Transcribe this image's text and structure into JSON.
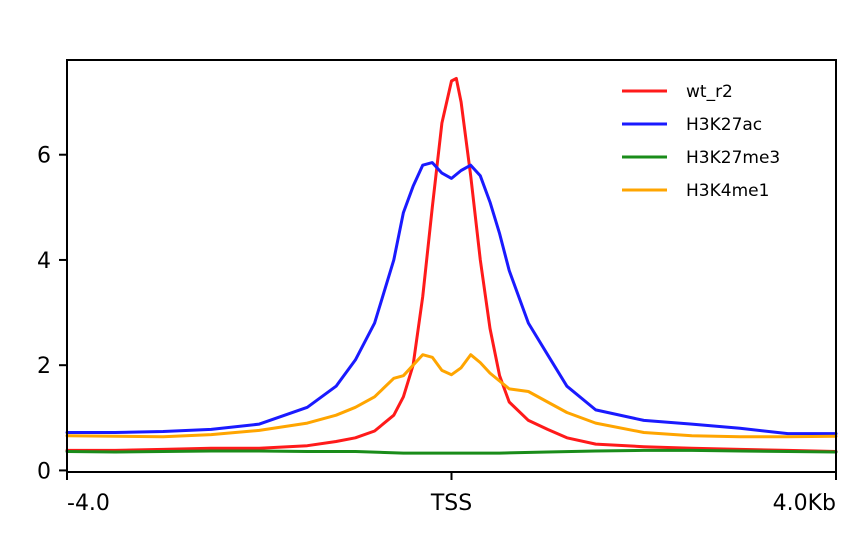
{
  "chart_data": {
    "type": "line",
    "title": "",
    "xlabel": "",
    "ylabel": "",
    "xlim": [
      -4.0,
      4.0
    ],
    "ylim": [
      -0.03,
      7.8
    ],
    "grid": false,
    "legend_position": "top-right",
    "x_ticks": [
      {
        "value": -4.0,
        "label": "-4.0"
      },
      {
        "value": 0.0,
        "label": "TSS"
      },
      {
        "value": 4.0,
        "label": "4.0Kb"
      }
    ],
    "y_ticks": [
      {
        "value": 0,
        "label": "0"
      },
      {
        "value": 2,
        "label": "2"
      },
      {
        "value": 4,
        "label": "4"
      },
      {
        "value": 6,
        "label": "6"
      }
    ],
    "series": [
      {
        "name": "wt_r2",
        "color": "#ff1a1a",
        "x": [
          -4.0,
          -3.5,
          -3.0,
          -2.5,
          -2.0,
          -1.5,
          -1.2,
          -1.0,
          -0.8,
          -0.6,
          -0.5,
          -0.4,
          -0.3,
          -0.2,
          -0.1,
          0.0,
          0.05,
          0.1,
          0.2,
          0.3,
          0.4,
          0.5,
          0.6,
          0.8,
          1.0,
          1.2,
          1.5,
          2.0,
          2.5,
          3.0,
          3.5,
          4.0
        ],
        "y": [
          0.38,
          0.38,
          0.4,
          0.42,
          0.42,
          0.47,
          0.55,
          0.62,
          0.75,
          1.05,
          1.4,
          2.0,
          3.3,
          5.0,
          6.6,
          7.4,
          7.45,
          7.0,
          5.6,
          4.0,
          2.7,
          1.8,
          1.3,
          0.95,
          0.78,
          0.62,
          0.5,
          0.45,
          0.42,
          0.4,
          0.38,
          0.36
        ]
      },
      {
        "name": "H3K27ac",
        "color": "#1a1aff",
        "x": [
          -4.0,
          -3.5,
          -3.0,
          -2.5,
          -2.0,
          -1.5,
          -1.2,
          -1.0,
          -0.8,
          -0.6,
          -0.5,
          -0.4,
          -0.3,
          -0.2,
          -0.1,
          0.0,
          0.1,
          0.2,
          0.3,
          0.4,
          0.5,
          0.6,
          0.8,
          1.0,
          1.2,
          1.5,
          2.0,
          2.5,
          3.0,
          3.5,
          4.0
        ],
        "y": [
          0.72,
          0.72,
          0.74,
          0.78,
          0.88,
          1.2,
          1.6,
          2.1,
          2.8,
          4.0,
          4.9,
          5.4,
          5.8,
          5.85,
          5.65,
          5.55,
          5.7,
          5.8,
          5.6,
          5.1,
          4.5,
          3.8,
          2.8,
          2.2,
          1.6,
          1.15,
          0.95,
          0.88,
          0.8,
          0.7,
          0.7
        ]
      },
      {
        "name": "H3K27me3",
        "color": "#1a8c1a",
        "x": [
          -4.0,
          -3.5,
          -3.0,
          -2.5,
          -2.0,
          -1.5,
          -1.0,
          -0.5,
          0.0,
          0.5,
          1.0,
          1.5,
          2.0,
          2.5,
          3.0,
          3.5,
          4.0
        ],
        "y": [
          0.36,
          0.35,
          0.36,
          0.37,
          0.37,
          0.36,
          0.36,
          0.33,
          0.33,
          0.33,
          0.35,
          0.37,
          0.38,
          0.38,
          0.37,
          0.36,
          0.35
        ]
      },
      {
        "name": "H3K4me1",
        "color": "#ffa500",
        "x": [
          -4.0,
          -3.5,
          -3.0,
          -2.5,
          -2.0,
          -1.5,
          -1.2,
          -1.0,
          -0.8,
          -0.6,
          -0.5,
          -0.4,
          -0.3,
          -0.2,
          -0.1,
          0.0,
          0.1,
          0.2,
          0.3,
          0.4,
          0.5,
          0.6,
          0.8,
          1.0,
          1.2,
          1.5,
          2.0,
          2.5,
          3.0,
          3.5,
          4.0
        ],
        "y": [
          0.66,
          0.65,
          0.64,
          0.68,
          0.76,
          0.9,
          1.05,
          1.2,
          1.4,
          1.75,
          1.8,
          2.0,
          2.2,
          2.15,
          1.9,
          1.82,
          1.95,
          2.2,
          2.05,
          1.85,
          1.7,
          1.55,
          1.5,
          1.3,
          1.1,
          0.9,
          0.72,
          0.66,
          0.64,
          0.64,
          0.65
        ]
      }
    ]
  }
}
